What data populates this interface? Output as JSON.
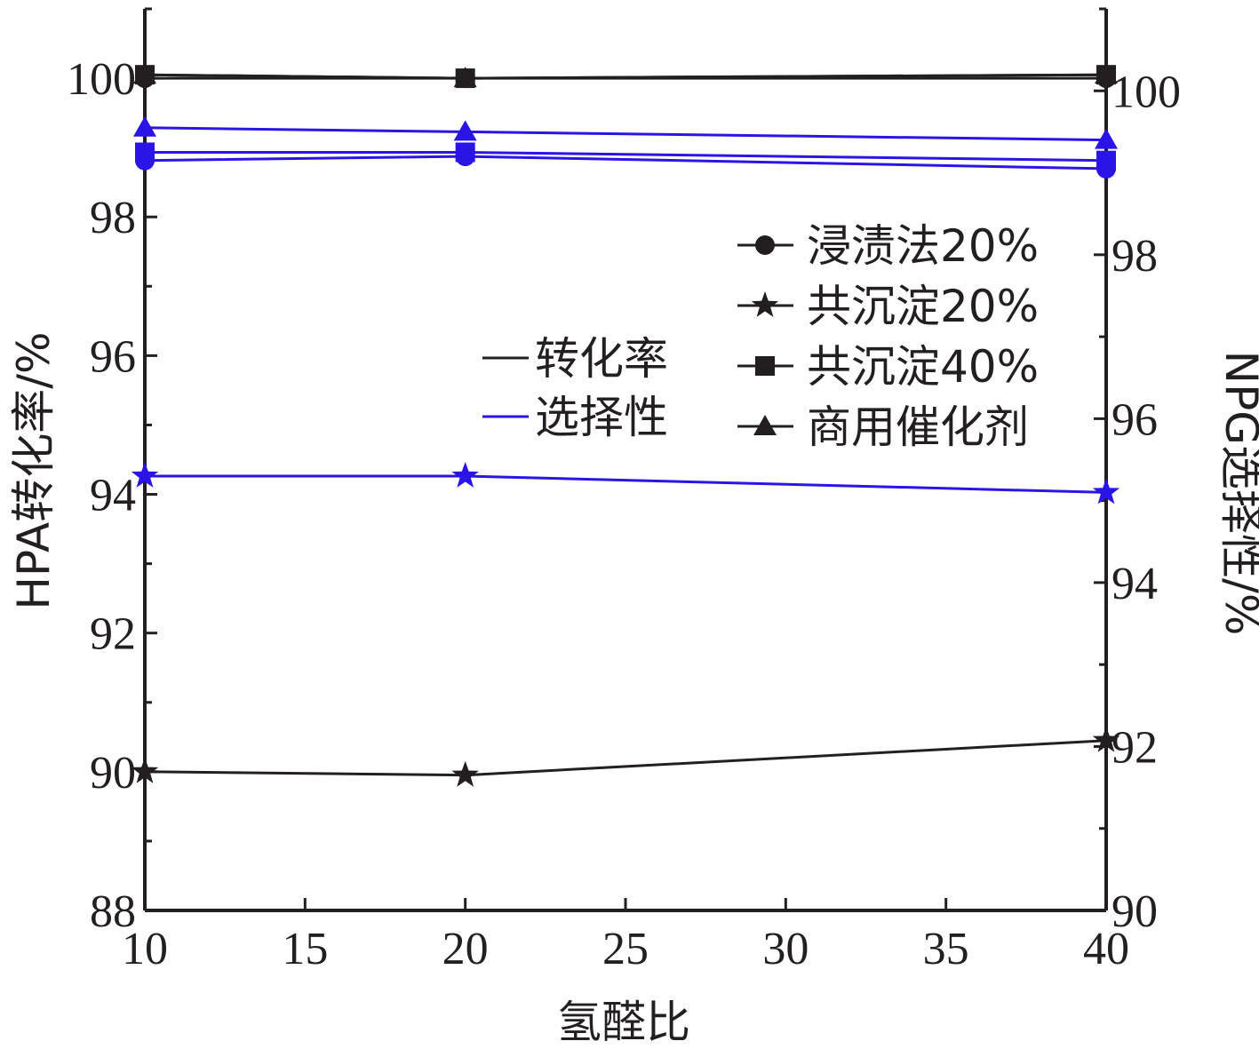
{
  "chart_data": {
    "type": "line",
    "xlabel": "氢醛比",
    "ylabel_left": "HPA转化率/%",
    "ylabel_right": "NPG选择性/%",
    "x": [
      10,
      20,
      40
    ],
    "xlim": [
      10,
      40
    ],
    "xticks": [
      10,
      15,
      20,
      25,
      30,
      35,
      40
    ],
    "ylim_left": [
      88,
      101
    ],
    "yticks_left": [
      88,
      90,
      92,
      94,
      96,
      98,
      100
    ],
    "ylim_right": [
      90,
      101
    ],
    "yticks_right": [
      90,
      92,
      94,
      96,
      98,
      100
    ],
    "grid": false,
    "colors": {
      "conversion": "#231f20",
      "selectivity": "#2b14e6"
    },
    "legend_metric": [
      {
        "label": "转化率",
        "color": "#231f20"
      },
      {
        "label": "选择性",
        "color": "#2b14e6"
      }
    ],
    "legend_catalyst": [
      {
        "label": "浸渍法20%",
        "marker": "circle"
      },
      {
        "label": "共沉淀20%",
        "marker": "star"
      },
      {
        "label": "共沉淀40%",
        "marker": "square"
      },
      {
        "label": "商用催化剂",
        "marker": "triangle"
      }
    ],
    "legend_placement": "center-right",
    "series": [
      {
        "name": "浸渍法20%",
        "metric": "转化率",
        "axis": "left",
        "marker": "circle",
        "values": [
          100,
          100,
          100
        ]
      },
      {
        "name": "共沉淀20%",
        "metric": "转化率",
        "axis": "left",
        "marker": "star",
        "values": [
          90,
          89.95,
          90.45
        ]
      },
      {
        "name": "共沉淀40%",
        "metric": "转化率",
        "axis": "left",
        "marker": "square",
        "values": [
          100.05,
          100,
          100.05
        ]
      },
      {
        "name": "商用催化剂",
        "metric": "转化率",
        "axis": "left",
        "marker": "triangle",
        "values": [
          100.05,
          100,
          100.05
        ]
      },
      {
        "name": "浸渍法20%",
        "metric": "选择性",
        "axis": "right",
        "marker": "circle",
        "values": [
          99.15,
          99.2,
          99.05
        ]
      },
      {
        "name": "共沉淀20%",
        "metric": "选择性",
        "axis": "right",
        "marker": "star",
        "values": [
          95.3,
          95.3,
          95.1
        ]
      },
      {
        "name": "共沉淀40%",
        "metric": "选择性",
        "axis": "right",
        "marker": "square",
        "values": [
          99.25,
          99.25,
          99.15
        ]
      },
      {
        "name": "商用催化剂",
        "metric": "选择性",
        "axis": "right",
        "marker": "triangle",
        "values": [
          99.55,
          99.5,
          99.4
        ]
      }
    ]
  }
}
